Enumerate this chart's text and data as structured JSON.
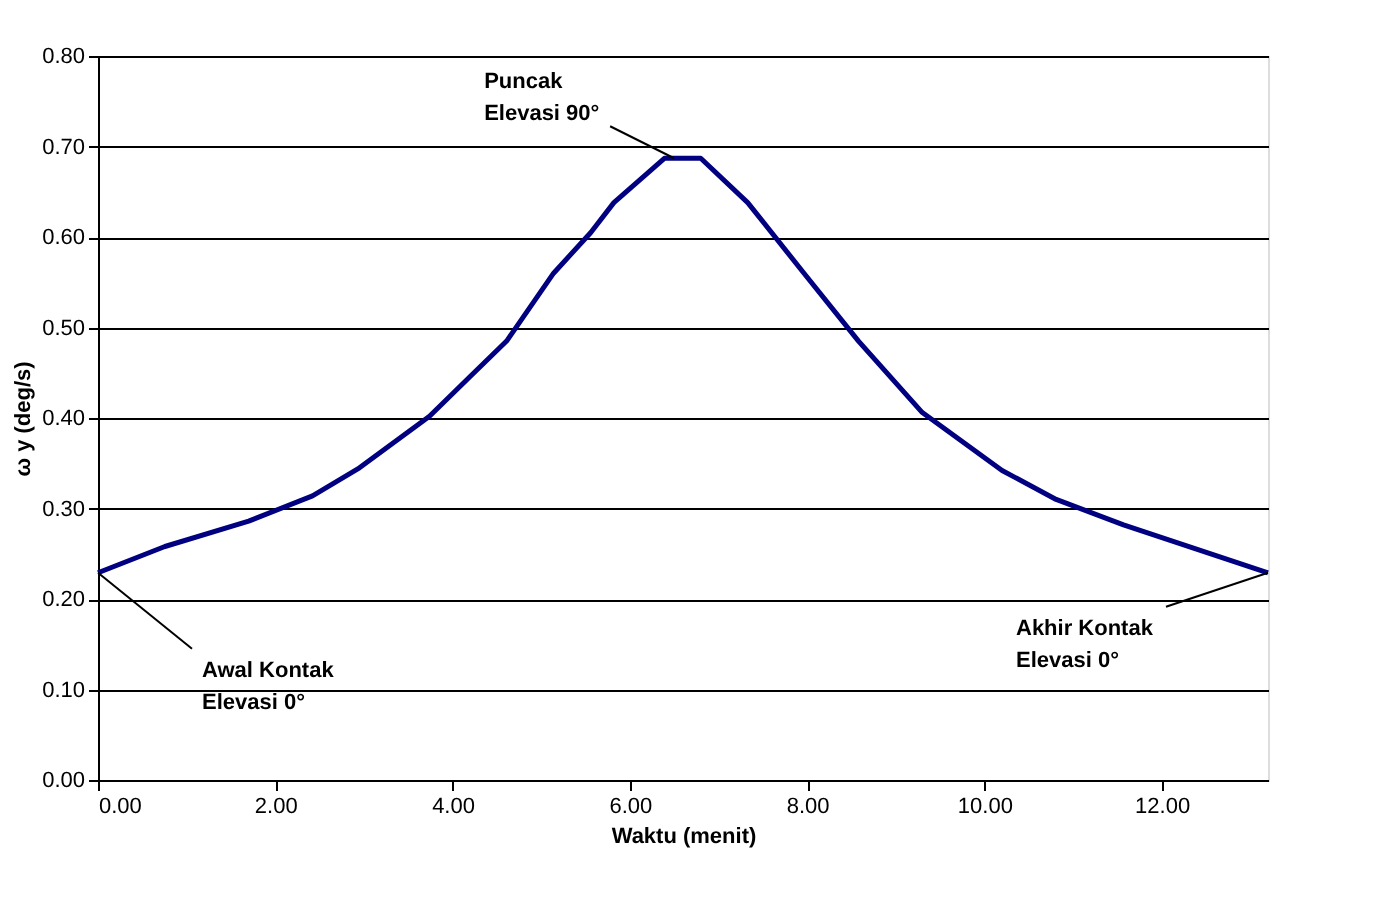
{
  "chart_data": {
    "type": "line",
    "xlabel": "Waktu (menit)",
    "ylabel": "ω y (deg/s)",
    "x": [
      0,
      0.755,
      1.7,
      2.42,
      2.95,
      3.74,
      4.19,
      4.61,
      5.14,
      5.56,
      5.82,
      6.39,
      6.8,
      7.33,
      7.94,
      8.58,
      9.3,
      10.2,
      10.81,
      11.57,
      13.2
    ],
    "series": [
      {
        "color": "#000080",
        "values": [
          0.229,
          0.258,
          0.286,
          0.314,
          0.345,
          0.402,
          0.445,
          0.485,
          0.56,
          0.605,
          0.638,
          0.687,
          0.687,
          0.638,
          0.563,
          0.485,
          0.406,
          0.342,
          0.31,
          0.282,
          0.229
        ]
      }
    ],
    "xlim": [
      0,
      13.2
    ],
    "ylim": [
      0,
      0.8
    ],
    "xticks": [
      {
        "value": 0,
        "label": "0.00"
      },
      {
        "value": 2,
        "label": "2.00"
      },
      {
        "value": 4,
        "label": "4.00"
      },
      {
        "value": 6,
        "label": "6.00"
      },
      {
        "value": 8,
        "label": "8.00"
      },
      {
        "value": 10,
        "label": "10.00"
      },
      {
        "value": 12,
        "label": "12.00"
      }
    ],
    "yticks": [
      {
        "value": 0,
        "label": "0.00"
      },
      {
        "value": 0.1,
        "label": "0.10"
      },
      {
        "value": 0.2,
        "label": "0.20"
      },
      {
        "value": 0.3,
        "label": "0.30"
      },
      {
        "value": 0.4,
        "label": "0.40"
      },
      {
        "value": 0.5,
        "label": "0.50"
      },
      {
        "value": 0.6,
        "label": "0.60"
      },
      {
        "value": 0.7,
        "label": "0.70"
      },
      {
        "value": 0.8,
        "label": "0.80"
      }
    ],
    "grid": "y",
    "legend": false,
    "marker": "none",
    "line_style": "solid",
    "annotations": [
      {
        "text": "Puncak\nElevasi 90°",
        "x": 6.5,
        "y": 0.687
      },
      {
        "text": "Awal Kontak\nElevasi 0°",
        "x": 0,
        "y": 0.229
      },
      {
        "text": "Akhir Kontak\nElevasi 0°",
        "x": 13.2,
        "y": 0.229
      }
    ]
  }
}
